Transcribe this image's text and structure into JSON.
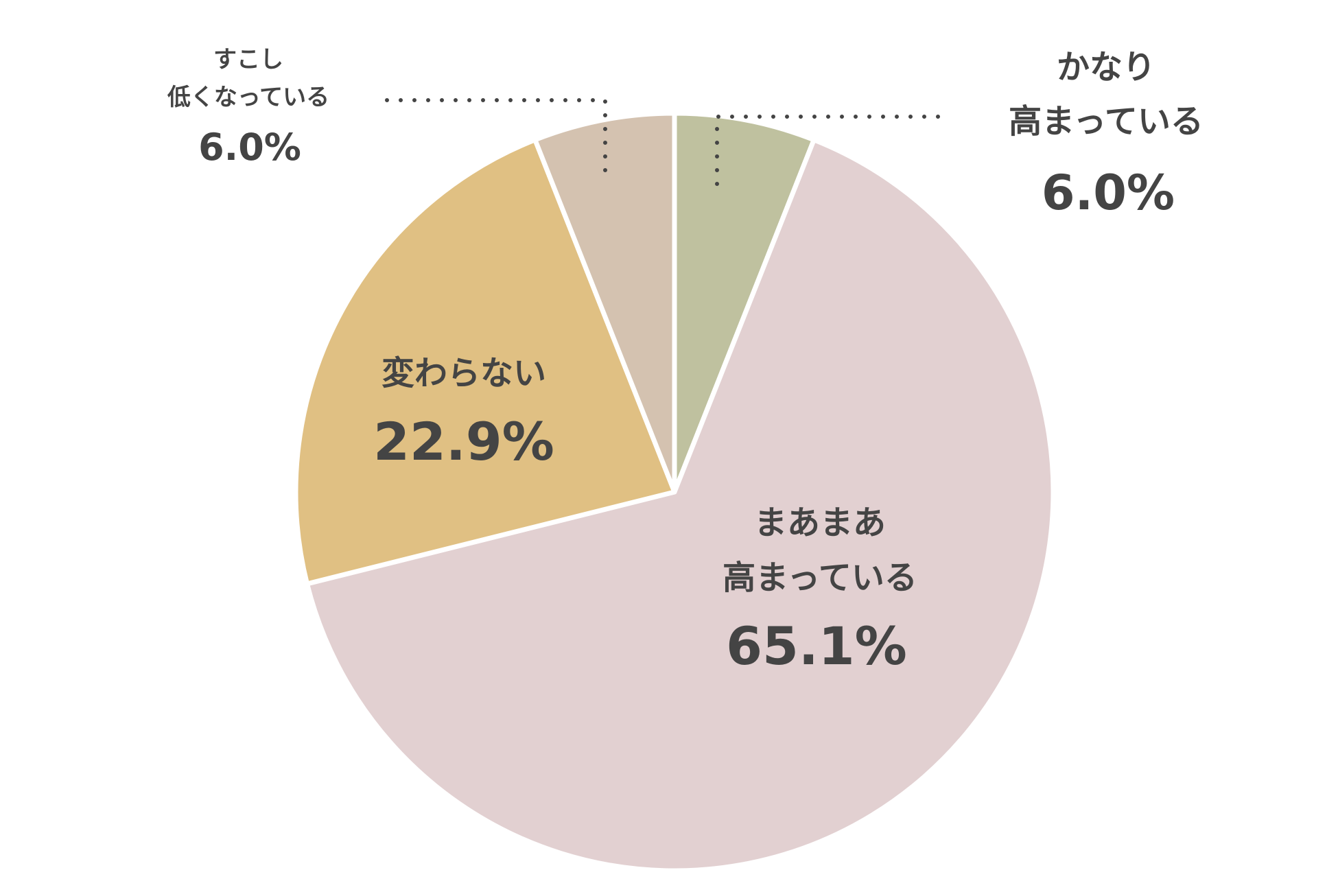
{
  "chart_data": {
    "type": "pie",
    "title": "",
    "start_angle_deg": 0,
    "direction": "clockwise",
    "slices": [
      {
        "lines": [
          "かなり",
          "高まっている"
        ],
        "value_label": "6.0%",
        "value": 6.0,
        "color": "#bfc19f"
      },
      {
        "lines": [
          "まあまあ",
          "高まっている"
        ],
        "value_label": "65.1%",
        "value": 65.1,
        "color": "#e2d0d1"
      },
      {
        "lines": [
          "変わらない"
        ],
        "value_label": "22.9%",
        "value": 22.9,
        "color": "#e0c083"
      },
      {
        "lines": [
          "すこし",
          "低くなっている"
        ],
        "value_label": "6.0%",
        "value": 6.0,
        "color": "#d4c2b0"
      }
    ],
    "separator_color": "#ffffff"
  }
}
